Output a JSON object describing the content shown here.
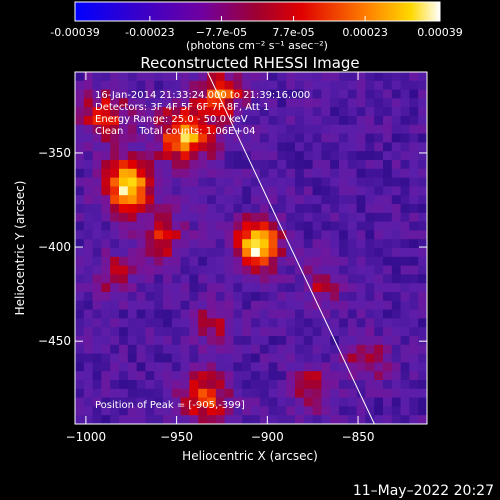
{
  "chart_data": {
    "type": "heatmap",
    "title": "Reconstructed RHESSI Image",
    "xlabel": "Heliocentric X (arcsec)",
    "ylabel": "Heliocentric Y (arcsec)",
    "xlim": [
      -1006,
      -812
    ],
    "ylim": [
      -494,
      -307
    ],
    "x_ticks": [
      -1000,
      -950,
      -900,
      -850
    ],
    "x_tick_labels": [
      "−1000",
      "−950",
      "−900",
      "−850"
    ],
    "y_ticks": [
      -450,
      -400,
      -350
    ],
    "y_tick_labels": [
      "−450",
      "−400",
      "−350"
    ],
    "colorbar": {
      "min": -0.00039,
      "max": 0.00039,
      "ticks": [
        -0.00039,
        -0.00023,
        -7.7e-05,
        7.7e-05,
        0.00023,
        0.00039
      ],
      "tick_labels": [
        "-0.00039",
        "-0.00023",
        "−7.7e-05",
        "7.7e-05",
        "0.00023",
        "0.00039"
      ],
      "unit_label": "(photons cm⁻² s⁻¹ asec⁻²)"
    },
    "info_lines": [
      "16-Jan-2014 21:33:24.000 to 21:39:16.000",
      "Detectors: 3F 4F 5F 6F 7F 8F, Att 1",
      "Energy Range: 25.0 - 50.0 keV",
      "Clean     Total counts: 1.06E+04"
    ],
    "peak_label": "Position of Peak = [-905,-399]",
    "peak": [
      -905,
      -399
    ],
    "limb_line": [
      [
        -933,
        -307
      ],
      [
        -841,
        -494
      ]
    ],
    "sources": [
      {
        "x": -905,
        "y": -399,
        "amp": 1.0,
        "sigma": 9
      },
      {
        "x": -977,
        "y": -368,
        "amp": 0.9,
        "sigma": 10
      },
      {
        "x": -945,
        "y": -340,
        "amp": 0.8,
        "sigma": 11
      },
      {
        "x": -925,
        "y": -318,
        "amp": 0.6,
        "sigma": 9
      },
      {
        "x": -990,
        "y": -330,
        "amp": 0.5,
        "sigma": 10
      },
      {
        "x": -958,
        "y": -395,
        "amp": 0.45,
        "sigma": 10
      },
      {
        "x": -985,
        "y": -415,
        "amp": 0.4,
        "sigma": 8
      },
      {
        "x": -935,
        "y": -480,
        "amp": 0.6,
        "sigma": 10
      },
      {
        "x": -875,
        "y": -475,
        "amp": 0.45,
        "sigma": 8
      },
      {
        "x": -845,
        "y": -460,
        "amp": 0.4,
        "sigma": 8
      },
      {
        "x": -870,
        "y": -420,
        "amp": 0.35,
        "sigma": 8
      },
      {
        "x": -930,
        "y": -440,
        "amp": 0.35,
        "sigma": 9
      }
    ]
  },
  "footer": {
    "timestamp": "11–May–2022 20:27"
  }
}
